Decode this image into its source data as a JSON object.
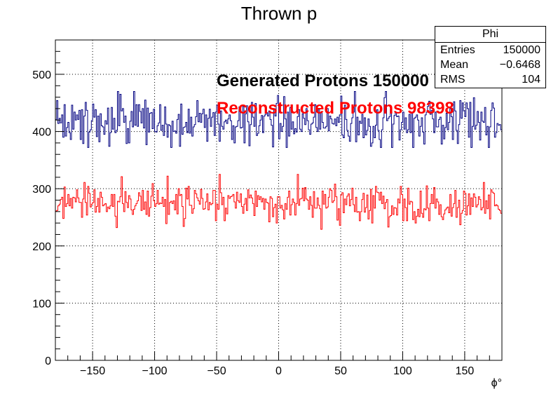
{
  "title": "Thrown p",
  "stats_box": {
    "name": "Phi",
    "rows": [
      {
        "key": "Entries",
        "value": "150000"
      },
      {
        "key": "Mean",
        "value": "−0.6468"
      },
      {
        "key": "RMS",
        "value": "104"
      }
    ]
  },
  "annotations": {
    "generated": "Generated Protons 150000",
    "reconstructed": "Reconstructed Protons 98398"
  },
  "colors": {
    "generated": "#000080",
    "reconstructed": "#ff0000"
  },
  "chart_data": {
    "type": "histogram",
    "title": "Thrown p",
    "xlabel": "ϕ°",
    "ylabel": "",
    "xlim": [
      -180,
      180
    ],
    "ylim": [
      0,
      560
    ],
    "x_ticks": [
      -150,
      -100,
      -50,
      0,
      50,
      100,
      150
    ],
    "x_tick_labels": [
      "−150",
      "−100",
      "−50",
      "0",
      "50",
      "100",
      "150"
    ],
    "y_ticks": [
      0,
      100,
      200,
      300,
      400,
      500
    ],
    "y_tick_labels": [
      "0",
      "100",
      "200",
      "300",
      "400",
      "500"
    ],
    "grid": true,
    "bins": 360,
    "series": [
      {
        "mean": 416,
        "spread": 22,
        "low": 372,
        "high": 470
      },
      {
        "mean": 273,
        "spread": 17,
        "low": 215,
        "high": 325
      }
    ]
  }
}
